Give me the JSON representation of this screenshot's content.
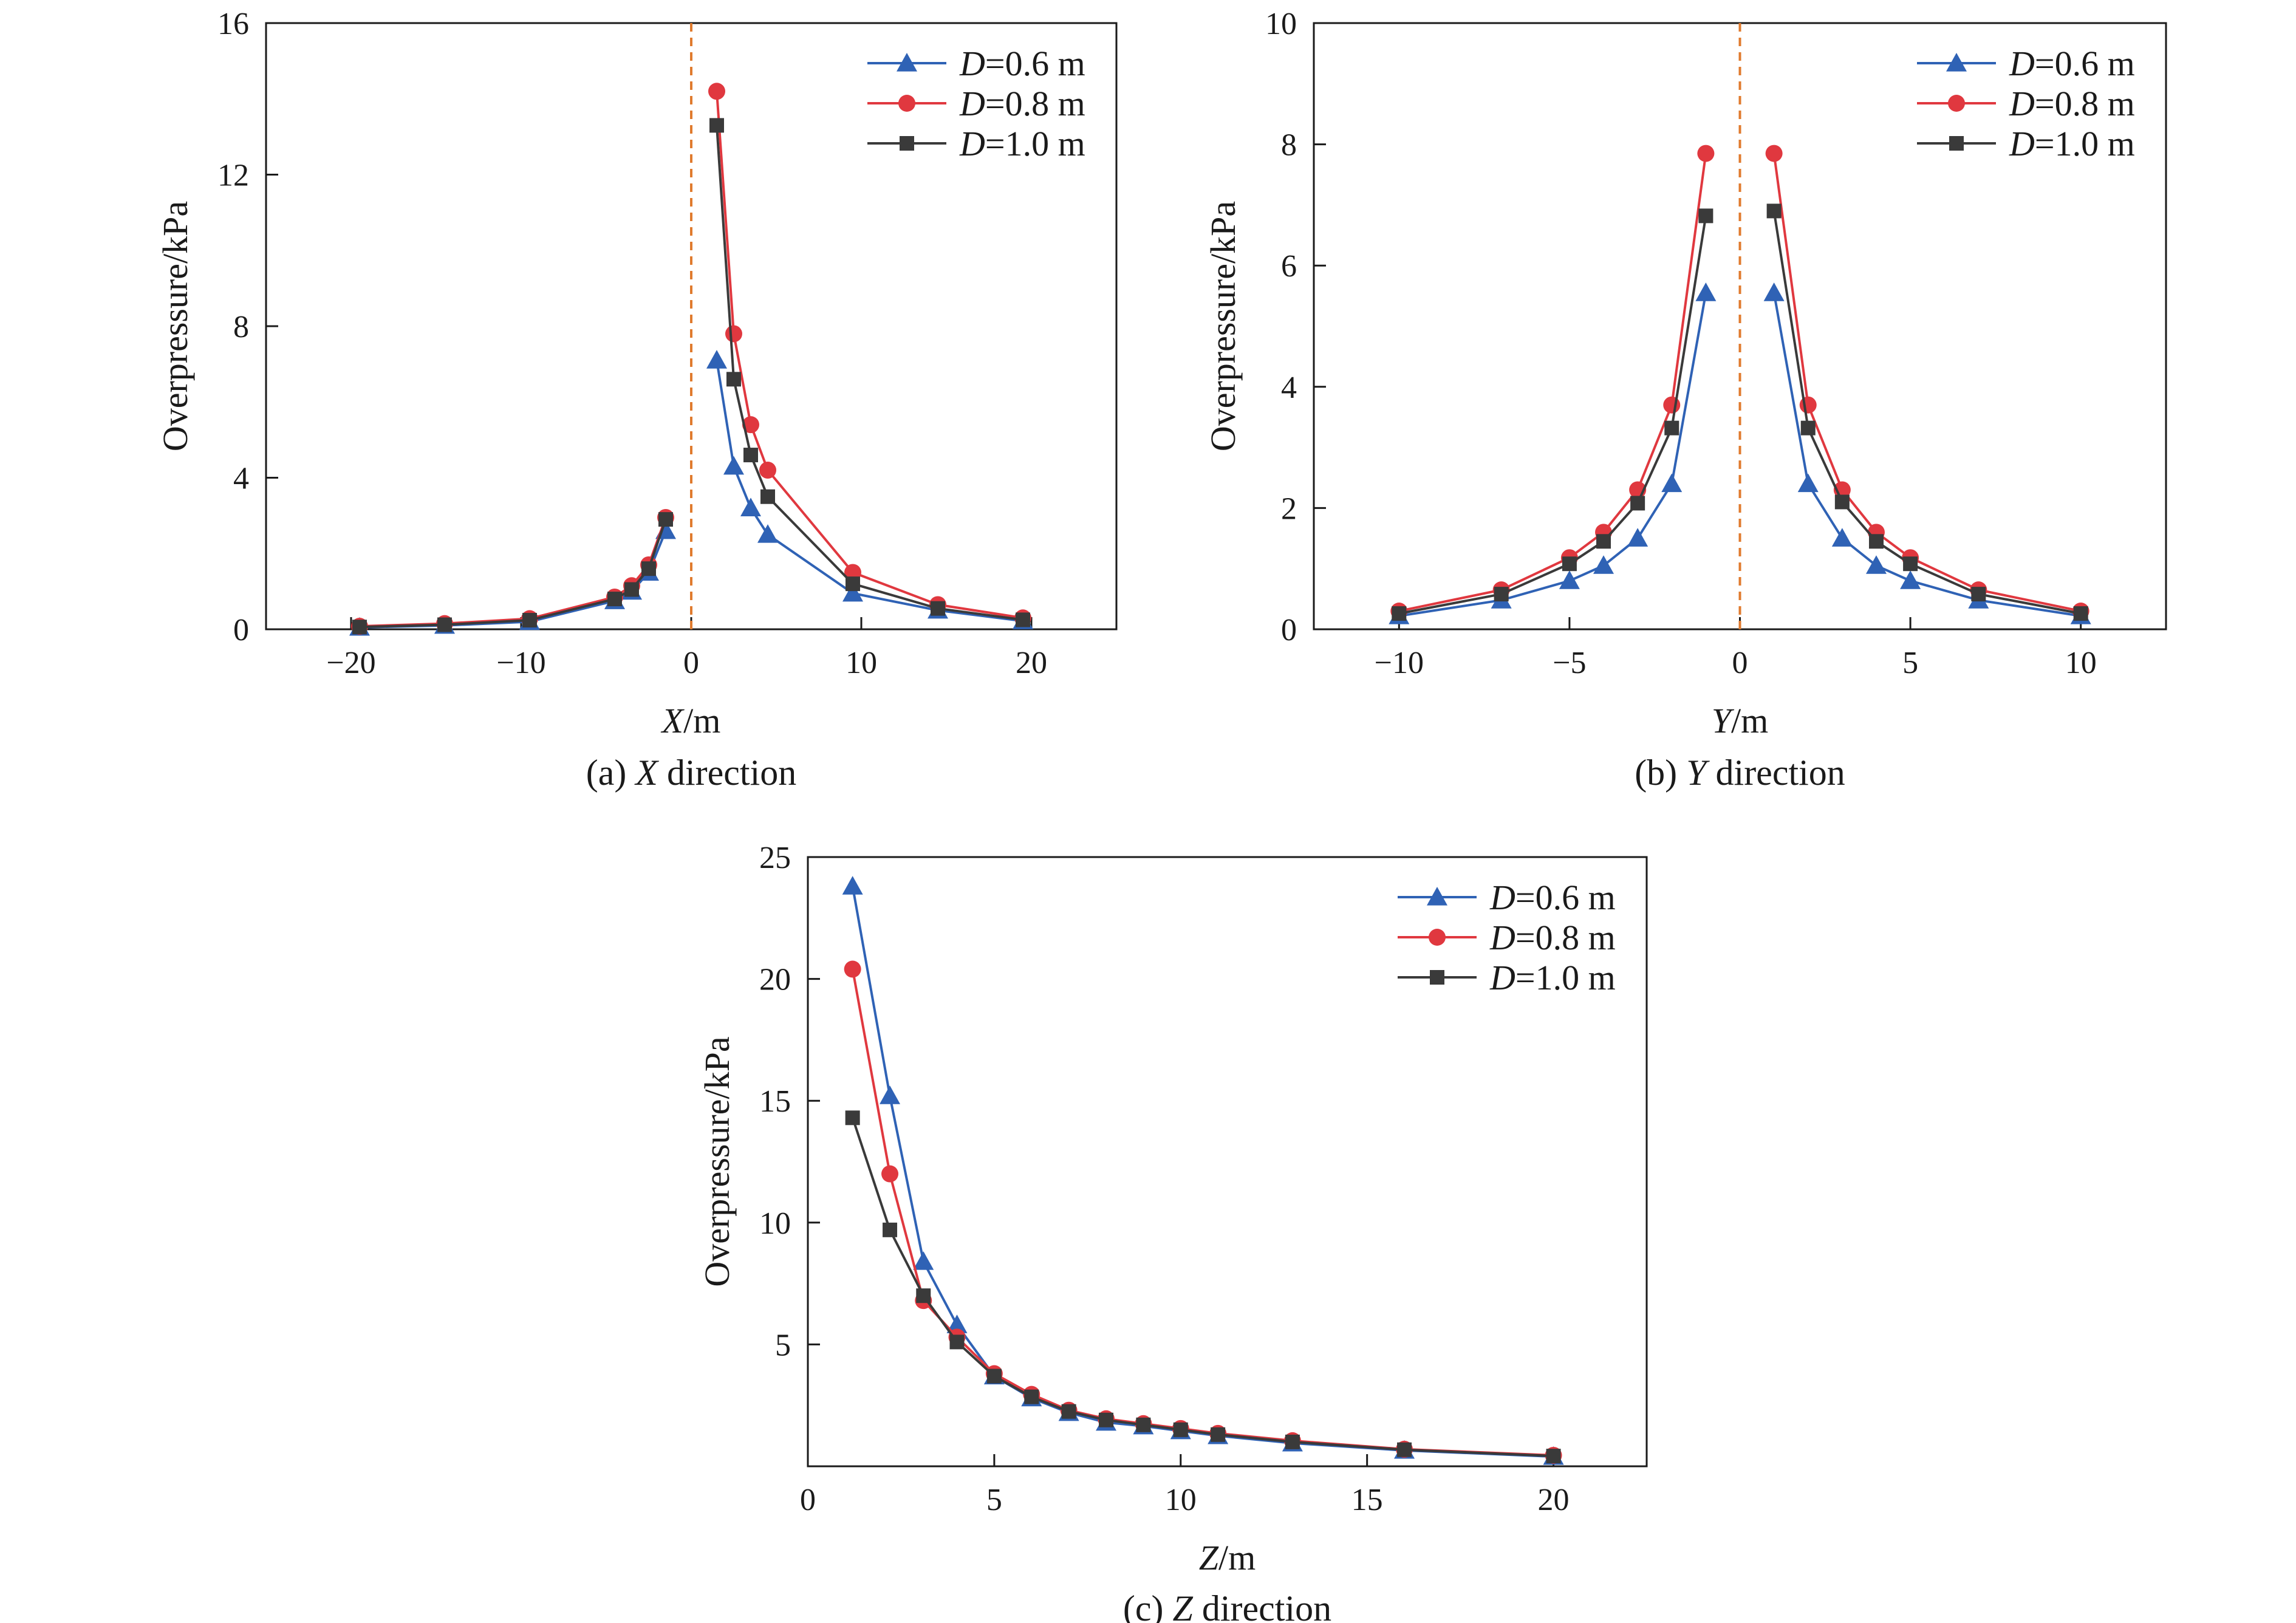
{
  "colors": {
    "D06": "#2f62b5",
    "D08": "#e0383f",
    "D10": "#3a3a3a",
    "ref_line": "#e07b2e"
  },
  "chart_data": [
    {
      "type": "line",
      "caption": {
        "prefix": "(a) ",
        "var": "X",
        "suffix": " direction"
      },
      "xlabel": {
        "var": "X",
        "unit": "/m"
      },
      "ylabel": "Overpressure/kPa",
      "xlim": [
        -25,
        25
      ],
      "ylim": [
        0,
        16
      ],
      "xticks": [
        {
          "v": -20,
          "label": "−20"
        },
        {
          "v": -10,
          "label": "−10"
        },
        {
          "v": 0,
          "label": "0"
        },
        {
          "v": 10,
          "label": "10"
        },
        {
          "v": 20,
          "label": "20"
        }
      ],
      "yticks": [
        {
          "v": 0,
          "label": "0"
        },
        {
          "v": 4,
          "label": "4"
        },
        {
          "v": 8,
          "label": "8"
        },
        {
          "v": 12,
          "label": "12"
        },
        {
          "v": 16,
          "label": "16"
        }
      ],
      "ref_line_x": 0,
      "legend_position": "top-right",
      "series": [
        {
          "name": "D=0.6 m",
          "legend_var": "D",
          "legend_rest": "=0.6 m",
          "color_key": "D06",
          "marker": "triangle",
          "segments": [
            [
              [
                -19.5,
                0.05
              ],
              [
                -14.5,
                0.1
              ],
              [
                -9.5,
                0.2
              ],
              [
                -4.5,
                0.75
              ],
              [
                -3.5,
                1.0
              ],
              [
                -2.5,
                1.5
              ],
              [
                -1.5,
                2.6
              ]
            ],
            [
              [
                1.5,
                7.1
              ],
              [
                2.5,
                4.3
              ],
              [
                3.5,
                3.2
              ],
              [
                4.5,
                2.5
              ],
              [
                9.5,
                0.95
              ],
              [
                14.5,
                0.5
              ],
              [
                19.5,
                0.22
              ]
            ]
          ]
        },
        {
          "name": "D=0.8 m",
          "legend_var": "D",
          "legend_rest": "=0.8 m",
          "color_key": "D08",
          "marker": "circle",
          "segments": [
            [
              [
                -19.5,
                0.08
              ],
              [
                -14.5,
                0.15
              ],
              [
                -9.5,
                0.28
              ],
              [
                -4.5,
                0.85
              ],
              [
                -3.5,
                1.15
              ],
              [
                -2.5,
                1.7
              ],
              [
                -1.5,
                2.95
              ]
            ],
            [
              [
                1.5,
                14.2
              ],
              [
                2.5,
                7.8
              ],
              [
                3.5,
                5.4
              ],
              [
                4.5,
                4.2
              ],
              [
                9.5,
                1.5
              ],
              [
                14.5,
                0.65
              ],
              [
                19.5,
                0.3
              ]
            ]
          ]
        },
        {
          "name": "D=1.0 m",
          "legend_var": "D",
          "legend_rest": "=1.0 m",
          "color_key": "D10",
          "marker": "square",
          "segments": [
            [
              [
                -19.5,
                0.06
              ],
              [
                -14.5,
                0.12
              ],
              [
                -9.5,
                0.24
              ],
              [
                -4.5,
                0.8
              ],
              [
                -3.5,
                1.05
              ],
              [
                -2.5,
                1.6
              ],
              [
                -1.5,
                2.9
              ]
            ],
            [
              [
                1.5,
                13.3
              ],
              [
                2.5,
                6.6
              ],
              [
                3.5,
                4.6
              ],
              [
                4.5,
                3.5
              ],
              [
                9.5,
                1.2
              ],
              [
                14.5,
                0.55
              ],
              [
                19.5,
                0.25
              ]
            ]
          ]
        }
      ]
    },
    {
      "type": "line",
      "caption": {
        "prefix": "(b) ",
        "var": "Y",
        "suffix": " direction"
      },
      "xlabel": {
        "var": "Y",
        "unit": "/m"
      },
      "ylabel": "Overpressure/kPa",
      "xlim": [
        -12.5,
        12.5
      ],
      "ylim": [
        0,
        10
      ],
      "xticks": [
        {
          "v": -10,
          "label": "−10"
        },
        {
          "v": -5,
          "label": "−5"
        },
        {
          "v": 0,
          "label": "0"
        },
        {
          "v": 5,
          "label": "5"
        },
        {
          "v": 10,
          "label": "10"
        }
      ],
      "yticks": [
        {
          "v": 0,
          "label": "0"
        },
        {
          "v": 2,
          "label": "2"
        },
        {
          "v": 4,
          "label": "4"
        },
        {
          "v": 6,
          "label": "6"
        },
        {
          "v": 8,
          "label": "8"
        },
        {
          "v": 10,
          "label": "10"
        }
      ],
      "ref_line_x": 0,
      "legend_position": "top-right",
      "series": [
        {
          "name": "D=0.6 m",
          "legend_var": "D",
          "legend_rest": "=0.6 m",
          "color_key": "D06",
          "marker": "triangle",
          "segments": [
            [
              [
                -10,
                0.22
              ],
              [
                -7,
                0.48
              ],
              [
                -5,
                0.8
              ],
              [
                -4,
                1.05
              ],
              [
                -3,
                1.5
              ],
              [
                -2,
                2.4
              ],
              [
                -1,
                5.55
              ]
            ],
            [
              [
                1,
                5.55
              ],
              [
                2,
                2.4
              ],
              [
                3,
                1.5
              ],
              [
                4,
                1.05
              ],
              [
                5,
                0.8
              ],
              [
                7,
                0.48
              ],
              [
                10,
                0.22
              ]
            ]
          ]
        },
        {
          "name": "D=0.8 m",
          "legend_var": "D",
          "legend_rest": "=0.8 m",
          "color_key": "D08",
          "marker": "circle",
          "segments": [
            [
              [
                -10,
                0.3
              ],
              [
                -7,
                0.65
              ],
              [
                -5,
                1.18
              ],
              [
                -4,
                1.6
              ],
              [
                -3,
                2.3
              ],
              [
                -2,
                3.7
              ],
              [
                -1,
                7.85
              ]
            ],
            [
              [
                1,
                7.85
              ],
              [
                2,
                3.7
              ],
              [
                3,
                2.3
              ],
              [
                4,
                1.6
              ],
              [
                5,
                1.18
              ],
              [
                7,
                0.65
              ],
              [
                10,
                0.3
              ]
            ]
          ]
        },
        {
          "name": "D=1.0 m",
          "legend_var": "D",
          "legend_rest": "=1.0 m",
          "color_key": "D10",
          "marker": "square",
          "segments": [
            [
              [
                -10,
                0.26
              ],
              [
                -7,
                0.58
              ],
              [
                -5,
                1.08
              ],
              [
                -4,
                1.45
              ],
              [
                -3,
                2.08
              ],
              [
                -2,
                3.32
              ],
              [
                -1,
                6.82
              ]
            ],
            [
              [
                1,
                6.9
              ],
              [
                2,
                3.32
              ],
              [
                3,
                2.1
              ],
              [
                4,
                1.45
              ],
              [
                5,
                1.08
              ],
              [
                7,
                0.58
              ],
              [
                10,
                0.26
              ]
            ]
          ]
        }
      ]
    },
    {
      "type": "line",
      "caption": {
        "prefix": "(c) ",
        "var": "Z",
        "suffix": " direction"
      },
      "xlabel": {
        "var": "Z",
        "unit": "/m"
      },
      "ylabel": "Overpressure/kPa",
      "xlim": [
        0,
        22.5
      ],
      "ylim": [
        0,
        25
      ],
      "xticks": [
        {
          "v": 0,
          "label": "0"
        },
        {
          "v": 5,
          "label": "5"
        },
        {
          "v": 10,
          "label": "10"
        },
        {
          "v": 15,
          "label": "15"
        },
        {
          "v": 20,
          "label": "20"
        }
      ],
      "yticks": [
        {
          "v": 5,
          "label": "5"
        },
        {
          "v": 10,
          "label": "10"
        },
        {
          "v": 15,
          "label": "15"
        },
        {
          "v": 20,
          "label": "20"
        },
        {
          "v": 25,
          "label": "25"
        }
      ],
      "legend_position": "top-right",
      "series": [
        {
          "name": "D=0.6 m",
          "legend_var": "D",
          "legend_rest": "=0.6 m",
          "color_key": "D06",
          "marker": "triangle",
          "segments": [
            [
              [
                1.2,
                23.8
              ],
              [
                2.2,
                15.2
              ],
              [
                3.1,
                8.4
              ],
              [
                4,
                5.8
              ],
              [
                5,
                3.7
              ],
              [
                6,
                2.8
              ],
              [
                7,
                2.2
              ],
              [
                8,
                1.8
              ],
              [
                9,
                1.65
              ],
              [
                10,
                1.45
              ],
              [
                11,
                1.25
              ],
              [
                13,
                0.95
              ],
              [
                16,
                0.65
              ],
              [
                20,
                0.4
              ]
            ]
          ]
        },
        {
          "name": "D=0.8 m",
          "legend_var": "D",
          "legend_rest": "=0.8 m",
          "color_key": "D08",
          "marker": "circle",
          "segments": [
            [
              [
                1.2,
                20.4
              ],
              [
                2.2,
                12.0
              ],
              [
                3.1,
                6.8
              ],
              [
                4,
                5.3
              ],
              [
                5,
                3.8
              ],
              [
                6,
                2.95
              ],
              [
                7,
                2.3
              ],
              [
                8,
                1.95
              ],
              [
                9,
                1.75
              ],
              [
                10,
                1.55
              ],
              [
                11,
                1.35
              ],
              [
                13,
                1.05
              ],
              [
                16,
                0.7
              ],
              [
                20,
                0.45
              ]
            ]
          ]
        },
        {
          "name": "D=1.0 m",
          "legend_var": "D",
          "legend_rest": "=1.0 m",
          "color_key": "D10",
          "marker": "square",
          "segments": [
            [
              [
                1.2,
                14.3
              ],
              [
                2.2,
                9.7
              ],
              [
                3.1,
                7.0
              ],
              [
                4,
                5.1
              ],
              [
                5,
                3.7
              ],
              [
                6,
                2.85
              ],
              [
                7,
                2.25
              ],
              [
                8,
                1.9
              ],
              [
                9,
                1.7
              ],
              [
                10,
                1.5
              ],
              [
                11,
                1.3
              ],
              [
                13,
                1.0
              ],
              [
                16,
                0.68
              ],
              [
                20,
                0.42
              ]
            ]
          ]
        }
      ]
    }
  ]
}
